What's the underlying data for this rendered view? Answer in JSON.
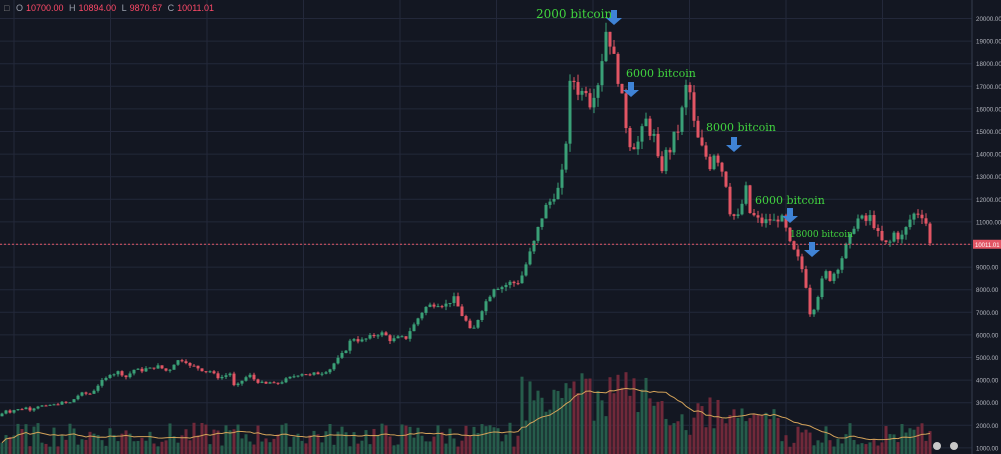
{
  "ohlc_bar": {
    "open_label": "O",
    "open_value": "10700.00",
    "high_label": "H",
    "high_value": "10894.00",
    "low_label": "L",
    "low_value": "9870.67",
    "close_label": "C",
    "close_value": "10011.01"
  },
  "price_tag": "10011.01",
  "colors": {
    "background": "#131722",
    "grid": "#23283a",
    "up": "#3aa077",
    "down": "#e25564",
    "volume_up": "#265c4b",
    "volume_down": "#70293a",
    "volume_ma": "#d4a35a",
    "annotation_text": "#41d43f",
    "annotation_arrow": "#3f83d6",
    "price_line": "#e25564"
  },
  "chart_data": {
    "type": "candlestick",
    "title": "",
    "xlabel": "",
    "ylabel": "",
    "ylim": [
      1000,
      20500
    ],
    "y_ticks": [
      "20000.00",
      "19000.00",
      "18000.00",
      "17000.00",
      "16000.00",
      "15000.00",
      "14000.00",
      "13000.00",
      "12000.00",
      "11000.00",
      "10000.00",
      "9000.00",
      "8000.00",
      "7000.00",
      "6000.00",
      "5000.00",
      "4000.00",
      "3000.00",
      "2000.00",
      "1000.00"
    ],
    "grid": true,
    "last_price": 10011.01,
    "price_series_approx": [
      [
        0,
        2400
      ],
      [
        5,
        2700
      ],
      [
        10,
        2600
      ],
      [
        15,
        2700
      ],
      [
        20,
        2700
      ],
      [
        25,
        2800
      ],
      [
        30,
        2700
      ],
      [
        35,
        2800
      ],
      [
        40,
        2900
      ],
      [
        45,
        2800
      ],
      [
        50,
        2900
      ],
      [
        55,
        2900
      ],
      [
        60,
        3000
      ],
      [
        65,
        3000
      ],
      [
        70,
        3000
      ],
      [
        75,
        3200
      ],
      [
        80,
        3400
      ],
      [
        85,
        3400
      ],
      [
        90,
        3400
      ],
      [
        95,
        3600
      ],
      [
        100,
        3900
      ],
      [
        105,
        4000
      ],
      [
        110,
        4300
      ],
      [
        115,
        4300
      ],
      [
        120,
        4400
      ],
      [
        125,
        4100
      ],
      [
        130,
        4300
      ],
      [
        135,
        4500
      ],
      [
        140,
        4400
      ],
      [
        145,
        4500
      ],
      [
        150,
        4500
      ],
      [
        155,
        4600
      ],
      [
        160,
        4600
      ],
      [
        165,
        4400
      ],
      [
        170,
        4500
      ],
      [
        175,
        4800
      ],
      [
        180,
        4900
      ],
      [
        185,
        4900
      ],
      [
        190,
        4600
      ],
      [
        195,
        4600
      ],
      [
        200,
        4500
      ],
      [
        205,
        4400
      ],
      [
        210,
        4400
      ],
      [
        215,
        4200
      ],
      [
        220,
        4100
      ],
      [
        225,
        4200
      ],
      [
        230,
        4300
      ],
      [
        235,
        3600
      ],
      [
        240,
        3900
      ],
      [
        245,
        4100
      ],
      [
        250,
        4200
      ],
      [
        255,
        4000
      ],
      [
        260,
        3900
      ],
      [
        265,
        3800
      ],
      [
        270,
        3900
      ],
      [
        275,
        3800
      ],
      [
        280,
        3900
      ],
      [
        285,
        4000
      ],
      [
        290,
        4100
      ],
      [
        295,
        4200
      ],
      [
        300,
        4300
      ],
      [
        305,
        4300
      ],
      [
        310,
        4200
      ],
      [
        315,
        4300
      ],
      [
        320,
        4300
      ],
      [
        325,
        4400
      ],
      [
        330,
        4500
      ],
      [
        335,
        4800
      ],
      [
        340,
        5000
      ],
      [
        345,
        5300
      ],
      [
        350,
        5700
      ],
      [
        355,
        5900
      ],
      [
        360,
        5700
      ],
      [
        365,
        5800
      ],
      [
        370,
        5900
      ],
      [
        375,
        6000
      ],
      [
        380,
        6100
      ],
      [
        385,
        6000
      ],
      [
        390,
        5800
      ],
      [
        395,
        5800
      ],
      [
        400,
        5900
      ],
      [
        405,
        5800
      ],
      [
        410,
        6200
      ],
      [
        415,
        6500
      ],
      [
        420,
        6900
      ],
      [
        425,
        7200
      ],
      [
        430,
        7300
      ],
      [
        435,
        7400
      ],
      [
        440,
        7400
      ],
      [
        445,
        7300
      ],
      [
        450,
        7500
      ],
      [
        455,
        7600
      ],
      [
        460,
        7000
      ],
      [
        465,
        6700
      ],
      [
        470,
        6200
      ],
      [
        475,
        6300
      ],
      [
        480,
        7000
      ],
      [
        485,
        7400
      ],
      [
        490,
        7800
      ],
      [
        495,
        8200
      ],
      [
        500,
        8100
      ],
      [
        505,
        8200
      ],
      [
        510,
        8300
      ],
      [
        515,
        8300
      ],
      [
        520,
        8400
      ],
      [
        525,
        9000
      ],
      [
        530,
        9600
      ],
      [
        535,
        10200
      ],
      [
        540,
        11000
      ],
      [
        545,
        11600
      ],
      [
        550,
        11900
      ],
      [
        555,
        12300
      ],
      [
        560,
        12500
      ],
      [
        565,
        14000
      ],
      [
        570,
        17000
      ],
      [
        575,
        17300
      ],
      [
        580,
        16500
      ],
      [
        585,
        17100
      ],
      [
        590,
        16300
      ],
      [
        595,
        16900
      ],
      [
        600,
        17400
      ],
      [
        605,
        19600
      ],
      [
        610,
        19000
      ],
      [
        615,
        18000
      ],
      [
        620,
        17000
      ],
      [
        625,
        15500
      ],
      [
        630,
        14500
      ],
      [
        635,
        14400
      ],
      [
        640,
        14600
      ],
      [
        645,
        15600
      ],
      [
        650,
        15000
      ],
      [
        655,
        14700
      ],
      [
        660,
        13000
      ],
      [
        665,
        14000
      ],
      [
        670,
        14200
      ],
      [
        675,
        14900
      ],
      [
        680,
        15200
      ],
      [
        685,
        17000
      ],
      [
        690,
        16700
      ],
      [
        695,
        15000
      ],
      [
        700,
        14400
      ],
      [
        705,
        14000
      ],
      [
        710,
        13500
      ],
      [
        715,
        14200
      ],
      [
        720,
        13500
      ],
      [
        725,
        13000
      ],
      [
        730,
        11500
      ],
      [
        735,
        11200
      ],
      [
        740,
        11200
      ],
      [
        745,
        12700
      ],
      [
        750,
        11400
      ],
      [
        755,
        11200
      ],
      [
        760,
        11000
      ],
      [
        765,
        11000
      ],
      [
        770,
        11100
      ],
      [
        775,
        11000
      ],
      [
        780,
        11300
      ],
      [
        785,
        10800
      ],
      [
        790,
        10000
      ],
      [
        795,
        9600
      ],
      [
        800,
        9200
      ],
      [
        805,
        8500
      ],
      [
        810,
        7000
      ],
      [
        815,
        7300
      ],
      [
        820,
        8100
      ],
      [
        825,
        8800
      ],
      [
        830,
        8500
      ],
      [
        835,
        8800
      ],
      [
        840,
        9200
      ],
      [
        845,
        9800
      ],
      [
        850,
        10300
      ],
      [
        855,
        11000
      ],
      [
        860,
        11200
      ],
      [
        865,
        11000
      ],
      [
        870,
        11200
      ],
      [
        875,
        10800
      ],
      [
        880,
        10200
      ],
      [
        885,
        10000
      ],
      [
        890,
        10100
      ],
      [
        895,
        10600
      ],
      [
        900,
        10200
      ],
      [
        905,
        10600
      ],
      [
        910,
        11100
      ],
      [
        915,
        11400
      ],
      [
        920,
        11400
      ],
      [
        925,
        11200
      ],
      [
        930,
        10011
      ]
    ],
    "annotations": [
      {
        "text": "2000 bitcoin",
        "x": 605,
        "y": 19800
      },
      {
        "text": "6000 bitcoin",
        "x": 625,
        "y": 17000
      },
      {
        "text": "8000 bitcoin",
        "x": 730,
        "y": 14600
      },
      {
        "text": "6000 bitcoin",
        "x": 785,
        "y": 11700
      },
      {
        "text": "18000 bitcoin",
        "x": 805,
        "y": 10300
      }
    ]
  }
}
